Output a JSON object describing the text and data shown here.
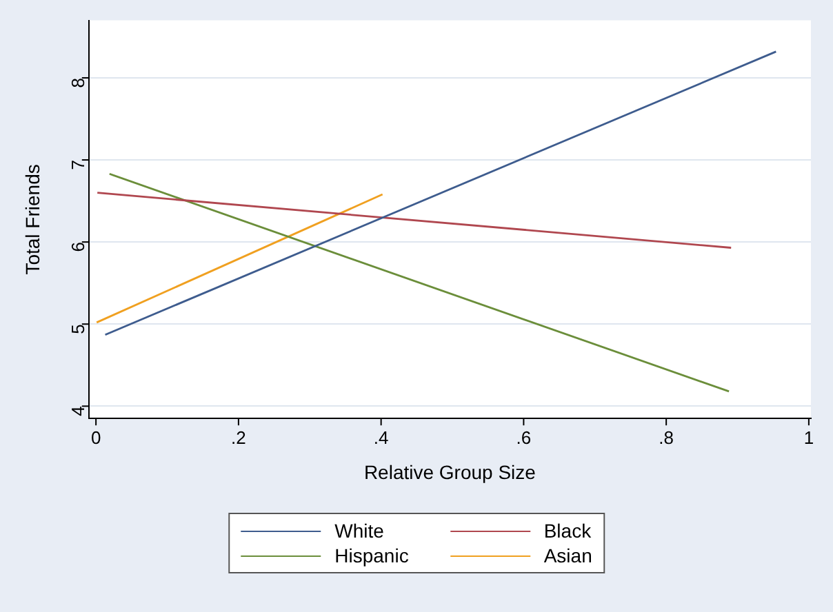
{
  "chart_data": {
    "type": "line",
    "xlabel": "Relative Group Size",
    "ylabel": "Total Friends",
    "series": [
      {
        "name": "White",
        "color": "#3e5c8e",
        "x": [
          0.013,
          0.954
        ],
        "values": [
          4.87,
          8.32
        ]
      },
      {
        "name": "Black",
        "color": "#b0474f",
        "x": [
          0.002,
          0.891
        ],
        "values": [
          6.6,
          5.93
        ]
      },
      {
        "name": "Hispanic",
        "color": "#6b8e3a",
        "x": [
          0.019,
          0.888
        ],
        "values": [
          6.83,
          4.18
        ]
      },
      {
        "name": "Asian",
        "color": "#f0a020",
        "x": [
          0.001,
          0.402
        ],
        "values": [
          5.02,
          6.58
        ]
      }
    ],
    "xlim": [
      -0.01,
      1.003
    ],
    "xticks": [
      {
        "value": 0,
        "label": "0"
      },
      {
        "value": 0.2,
        "label": ".2"
      },
      {
        "value": 0.4,
        "label": ".4"
      },
      {
        "value": 0.6,
        "label": ".6"
      },
      {
        "value": 0.8,
        "label": ".8"
      },
      {
        "value": 1,
        "label": "1"
      }
    ],
    "ylim": [
      3.85,
      8.7
    ],
    "yticks": [
      4,
      5,
      6,
      7,
      8
    ],
    "grid": "y",
    "legend": "bottom",
    "marker": "none",
    "line_style": "solid"
  }
}
